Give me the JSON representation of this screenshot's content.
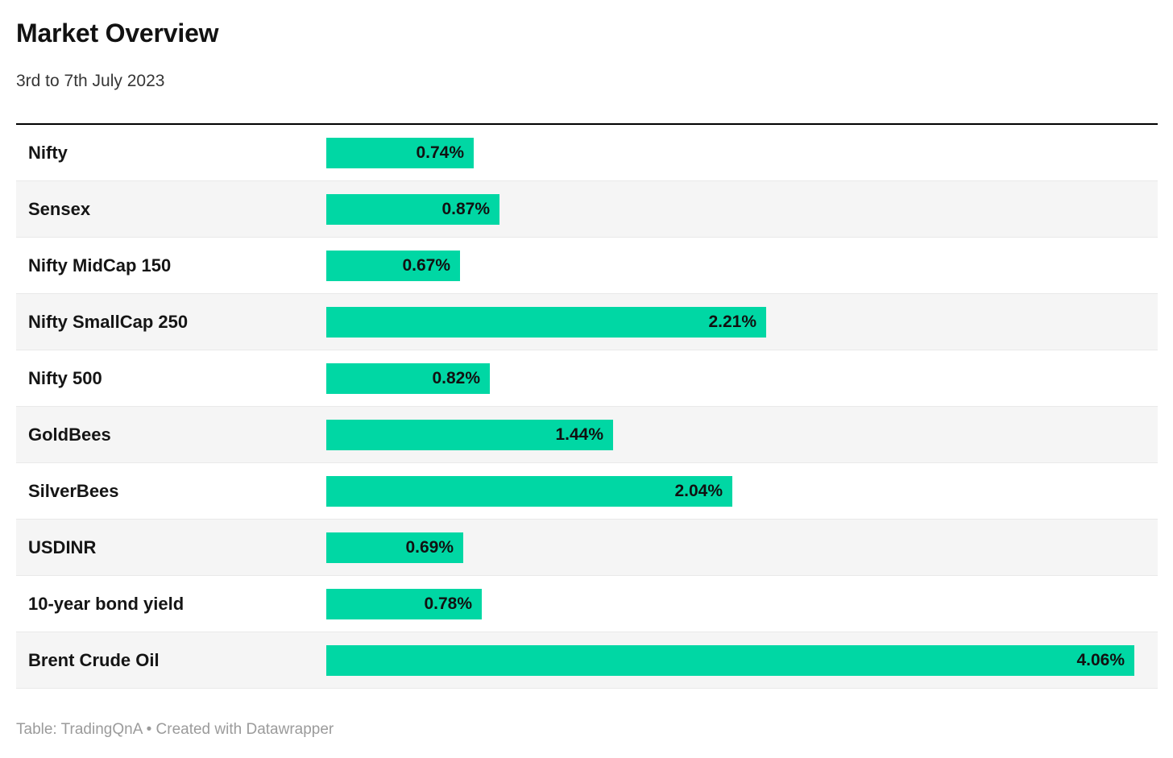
{
  "header": {
    "title": "Market Overview",
    "subtitle": "3rd to 7th July 2023"
  },
  "footer": {
    "text": "Table: TradingQnA • Created with Datawrapper"
  },
  "colors": {
    "bar": "#00d7a4",
    "stripe_row": "#f5f5f5",
    "row_border": "#e9e9e9",
    "top_rule": "#000000",
    "value_text": "#111111",
    "footer_text": "#9b9b9b"
  },
  "chart_data": {
    "type": "bar",
    "orientation": "horizontal",
    "title": "Market Overview",
    "subtitle": "3rd to 7th July 2023",
    "source": "Table: TradingQnA",
    "tool": "Created with Datawrapper",
    "unit": "%",
    "categories": [
      "Nifty",
      "Sensex",
      "Nifty MidCap 150",
      "Nifty SmallCap 250",
      "Nifty 500",
      "GoldBees",
      "SilverBees",
      "USDINR",
      "10-year bond yield",
      "Brent Crude Oil"
    ],
    "values": [
      0.74,
      0.87,
      0.67,
      2.21,
      0.82,
      1.44,
      2.04,
      0.69,
      0.78,
      4.06
    ],
    "value_labels": [
      "0.74%",
      "0.87%",
      "0.67%",
      "2.21%",
      "0.82%",
      "1.44%",
      "2.04%",
      "0.69%",
      "0.78%",
      "4.06%"
    ],
    "xlim": [
      0,
      4.06
    ],
    "grid": false,
    "legend": "none",
    "bar_color": "#00d7a4",
    "row_striping": "alternate, stripes on even rows (2nd, 4th, ...)"
  }
}
